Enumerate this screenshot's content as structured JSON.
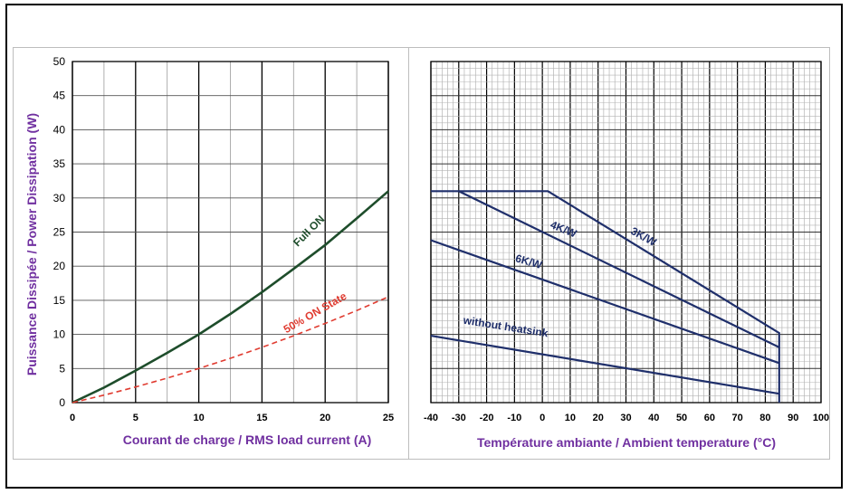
{
  "chart_data": [
    {
      "type": "line",
      "title": "",
      "xlabel": "Courant de charge / RMS load current (A)",
      "ylabel": "Puissance Dissipée / Power Dissipation (W)",
      "xlim": [
        0,
        25
      ],
      "ylim": [
        0,
        50
      ],
      "x_ticks": [
        "0",
        "5",
        "10",
        "15",
        "20",
        "25"
      ],
      "y_ticks": [
        "0",
        "5",
        "10",
        "15",
        "20",
        "25",
        "30",
        "35",
        "40",
        "45",
        "50"
      ],
      "grid": true,
      "series": [
        {
          "name": "Full ON",
          "color": "#1e4d2b",
          "style": "solid",
          "x": [
            0,
            2.5,
            5,
            7.5,
            10,
            12.5,
            15,
            17.5,
            20,
            22.5,
            25
          ],
          "y": [
            0,
            2.2,
            4.7,
            7.3,
            10.0,
            13.0,
            16.2,
            19.6,
            23.1,
            27.0,
            31.0
          ]
        },
        {
          "name": "50% ON State",
          "color": "#e03c31",
          "style": "dashed",
          "x": [
            0,
            2.5,
            5,
            7.5,
            10,
            12.5,
            15,
            17.5,
            20,
            22.5,
            25
          ],
          "y": [
            0,
            1.1,
            2.3,
            3.6,
            5.0,
            6.5,
            8.1,
            9.8,
            11.6,
            13.5,
            15.5
          ]
        }
      ]
    },
    {
      "type": "line",
      "title": "",
      "xlabel": "Température ambiante / Ambient temperature (°C)",
      "ylabel": "",
      "xlim": [
        -40,
        100
      ],
      "ylim": [
        0,
        50
      ],
      "x_ticks": [
        "-40",
        "-30",
        "-20",
        "-10",
        "0",
        "10",
        "20",
        "30",
        "40",
        "50",
        "60",
        "70",
        "80",
        "90",
        "100"
      ],
      "grid": true,
      "series": [
        {
          "name": "3K/W",
          "color": "#1f2f6b",
          "x": [
            -40,
            2,
            85,
            85
          ],
          "y": [
            31,
            31,
            10.2,
            0
          ]
        },
        {
          "name": "4K/W",
          "color": "#1f2f6b",
          "x": [
            -30,
            85
          ],
          "y": [
            31,
            8.1
          ]
        },
        {
          "name": "6K/W",
          "color": "#1f2f6b",
          "x": [
            -40,
            85
          ],
          "y": [
            23.8,
            5.8
          ]
        },
        {
          "name": "without heatsink",
          "color": "#1f2f6b",
          "x": [
            -40,
            85
          ],
          "y": [
            9.8,
            1.3
          ]
        }
      ]
    }
  ]
}
